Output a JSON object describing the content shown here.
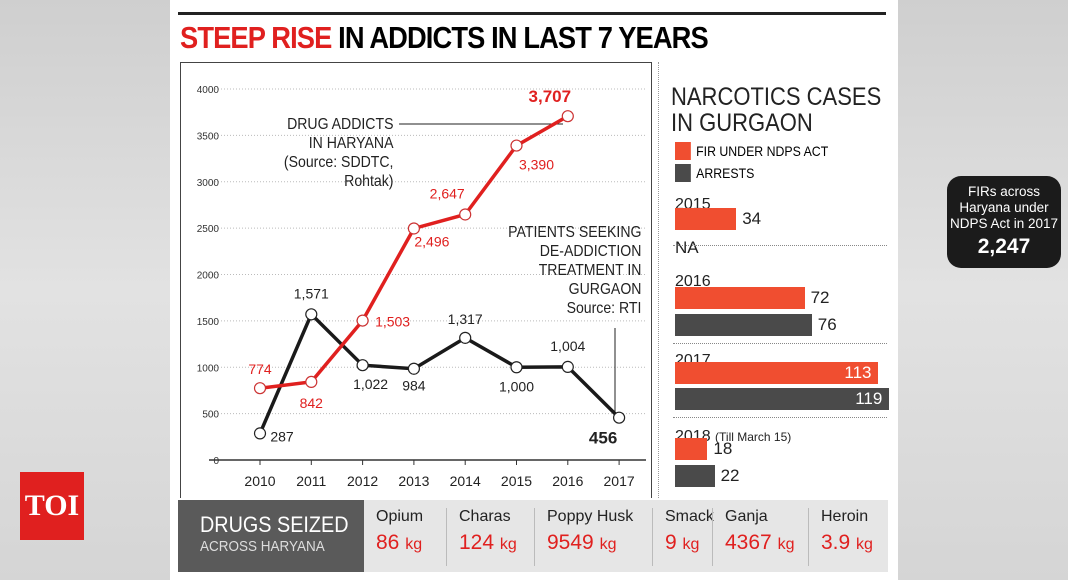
{
  "logo": "TOI",
  "title": {
    "highlight": "STEEP RISE",
    "rest": "IN ADDICTS IN LAST 7 YEARS"
  },
  "chart_data": [
    {
      "type": "line",
      "x": [
        2010,
        2011,
        2012,
        2013,
        2014,
        2015,
        2016,
        2017
      ],
      "ylim": [
        0,
        4000
      ],
      "yticks": [
        0,
        500,
        1000,
        1500,
        2000,
        2500,
        3000,
        3500,
        4000
      ],
      "grid": true,
      "series": [
        {
          "name": "DRUG ADDICTS IN HARYANA",
          "source": "(Source: SDDTC, Rohtak)",
          "color": "#e0201f",
          "x": [
            2010,
            2011,
            2012,
            2013,
            2014,
            2015,
            2016
          ],
          "values": [
            774,
            842,
            1503,
            2496,
            2647,
            3390,
            3707
          ],
          "labels": [
            "774",
            "842",
            "1,503",
            "2,496",
            "2,647",
            "3,390",
            "3,707"
          ]
        },
        {
          "name": "PATIENTS SEEKING DE-ADDICTION TREATMENT IN GURGAON",
          "source": "Source: RTI",
          "color": "#1a1a1a",
          "x": [
            2010,
            2011,
            2012,
            2013,
            2014,
            2015,
            2016,
            2017
          ],
          "values": [
            287,
            1571,
            1022,
            984,
            1317,
            1000,
            1004,
            456
          ],
          "labels": [
            "287",
            "1,571",
            "1,022",
            "984",
            "1,317",
            "1,000",
            "1,004",
            "456"
          ]
        }
      ],
      "annotation_lines": {
        "red": [
          "DRUG ADDICTS",
          "IN HARYANA",
          "(Source: SDDTC,",
          "Rohtak)"
        ],
        "black": [
          "PATIENTS SEEKING",
          "DE-ADDICTION",
          "TREATMENT IN",
          "GURGAON",
          "Source: RTI"
        ]
      }
    },
    {
      "type": "bar",
      "title": "NARCOTICS CASES IN GURGAON",
      "legend": [
        {
          "name": "FIR UNDER NDPS ACT",
          "color": "#f04e30"
        },
        {
          "name": "ARRESTS",
          "color": "#4a4a4a"
        }
      ],
      "groups": [
        {
          "label": "2015",
          "note": "",
          "fir": 34,
          "arrests": null,
          "arrests_text": "NA"
        },
        {
          "label": "2016",
          "note": "",
          "fir": 72,
          "arrests": 76
        },
        {
          "label": "2017",
          "note": "",
          "fir": 113,
          "arrests": 119
        },
        {
          "label": "2018",
          "note": "(Till March 15)",
          "fir": 18,
          "arrests": 22
        }
      ]
    }
  ],
  "right_title": [
    "NARCOTICS CASES",
    "IN GURGAON"
  ],
  "badge": {
    "lines": [
      "FIRs across",
      "Haryana under",
      "NDPS Act in 2017"
    ],
    "value": "2,247"
  },
  "seized": {
    "title": "DRUGS SEIZED",
    "subtitle": "ACROSS HARYANA",
    "items": [
      {
        "name": "Opium",
        "qty": "86",
        "unit": "kg"
      },
      {
        "name": "Charas",
        "qty": "124",
        "unit": "kg"
      },
      {
        "name": "Poppy Husk",
        "qty": "9549",
        "unit": "kg"
      },
      {
        "name": "Smack",
        "qty": "9",
        "unit": "kg"
      },
      {
        "name": "Ganja",
        "qty": "4367",
        "unit": "kg"
      },
      {
        "name": "Heroin",
        "qty": "3.9",
        "unit": "kg"
      }
    ]
  }
}
